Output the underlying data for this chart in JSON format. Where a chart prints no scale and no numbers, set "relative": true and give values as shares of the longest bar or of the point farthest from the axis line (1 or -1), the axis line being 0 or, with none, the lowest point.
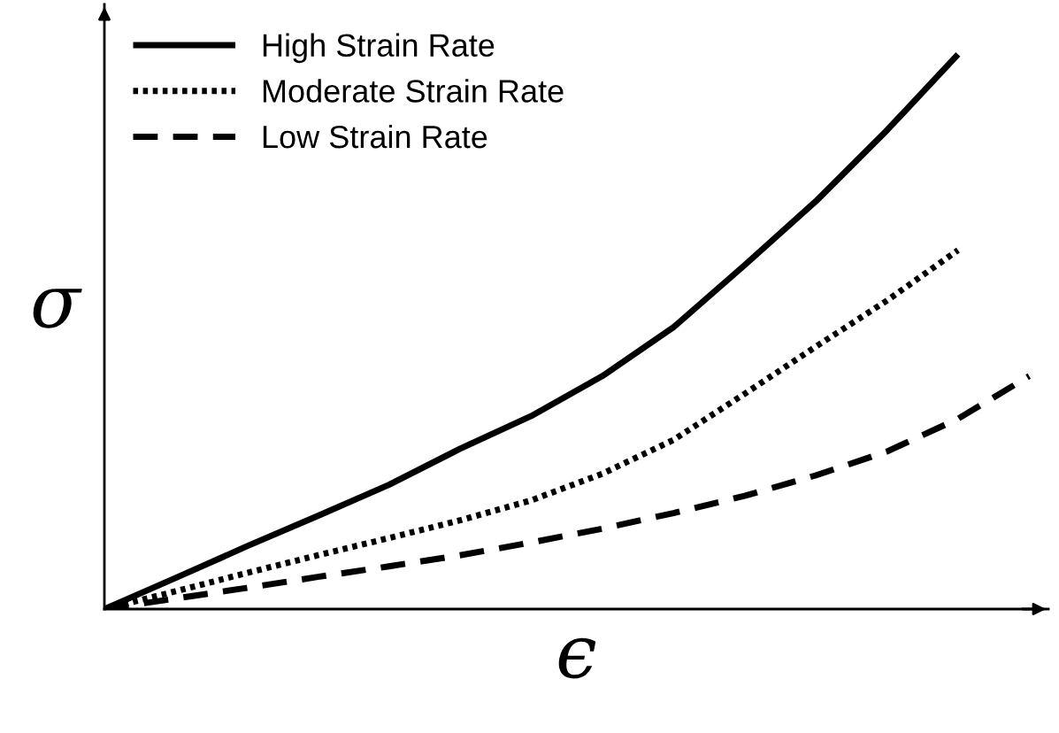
{
  "chart_data": {
    "type": "line",
    "relative": true,
    "xlabel": "ϵ",
    "ylabel": "σ",
    "legend": "top left",
    "grid": false,
    "tick_labels": false,
    "categories": [
      null,
      null,
      null,
      null,
      null,
      null,
      null,
      null,
      null,
      null,
      null,
      null,
      null,
      null
    ],
    "series": [
      {
        "name": "High Strain Rate",
        "color": "#000000",
        "line_style": "solid",
        "values": [
          0,
          0.056,
          0.113,
          0.168,
          0.224,
          0.289,
          0.348,
          0.42,
          0.508,
          0.62,
          0.735,
          0.863,
          1.0,
          null
        ]
      },
      {
        "name": "Moderate Strain Rate",
        "color": "#000000",
        "line_style": "dotted",
        "values": [
          0,
          0.032,
          0.065,
          0.097,
          0.128,
          0.16,
          0.196,
          0.244,
          0.305,
          0.388,
          0.473,
          0.556,
          0.647,
          null
        ]
      },
      {
        "name": "Low Strain Rate",
        "color": "#000000",
        "line_style": "dashed",
        "values": [
          0,
          0.019,
          0.038,
          0.058,
          0.077,
          0.097,
          0.12,
          0.145,
          0.173,
          0.204,
          0.241,
          0.284,
          0.343,
          0.42
        ]
      }
    ]
  }
}
